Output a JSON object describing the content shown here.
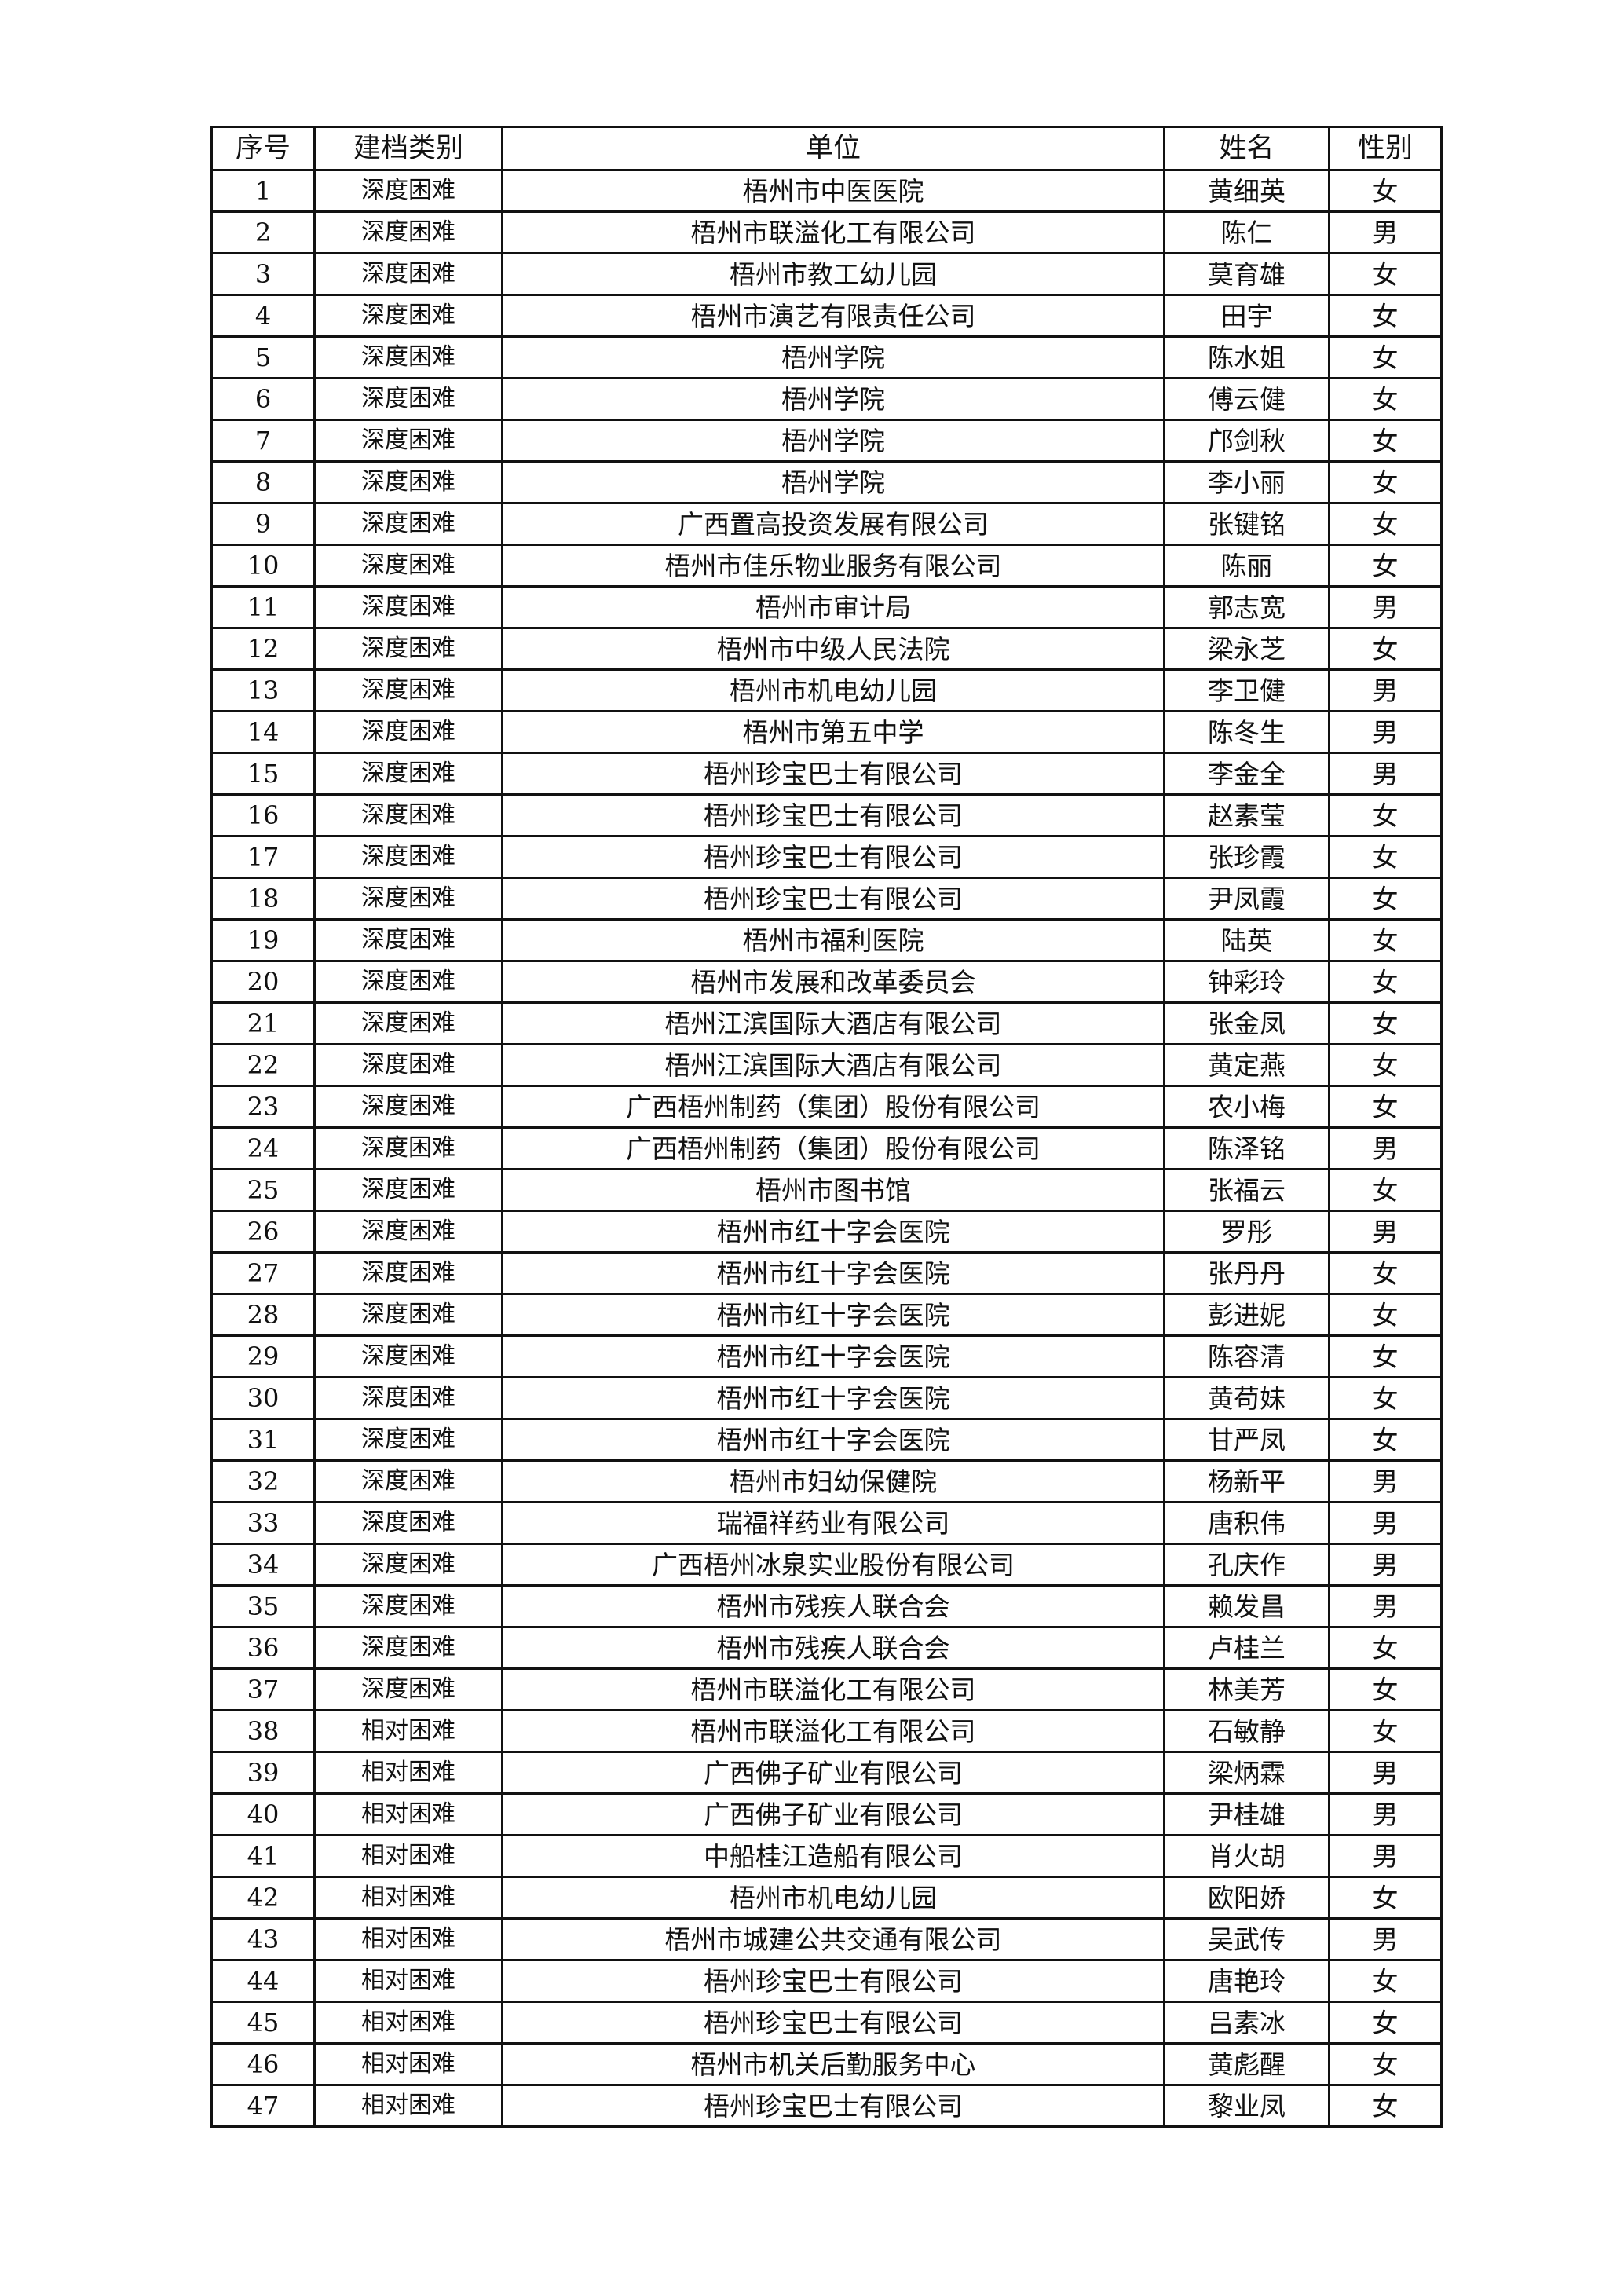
{
  "table": {
    "headers": [
      "序号",
      "建档类别",
      "单位",
      "姓名",
      "性别"
    ],
    "rows": [
      [
        "1",
        "深度困难",
        "梧州市中医医院",
        "黄细英",
        "女"
      ],
      [
        "2",
        "深度困难",
        "梧州市联溢化工有限公司",
        "陈仁",
        "男"
      ],
      [
        "3",
        "深度困难",
        "梧州市教工幼儿园",
        "莫育雄",
        "女"
      ],
      [
        "4",
        "深度困难",
        "梧州市演艺有限责任公司",
        "田宇",
        "女"
      ],
      [
        "5",
        "深度困难",
        "梧州学院",
        "陈水姐",
        "女"
      ],
      [
        "6",
        "深度困难",
        "梧州学院",
        "傅云健",
        "女"
      ],
      [
        "7",
        "深度困难",
        "梧州学院",
        "邝剑秋",
        "女"
      ],
      [
        "8",
        "深度困难",
        "梧州学院",
        "李小丽",
        "女"
      ],
      [
        "9",
        "深度困难",
        "广西置高投资发展有限公司",
        "张键铭",
        "女"
      ],
      [
        "10",
        "深度困难",
        "梧州市佳乐物业服务有限公司",
        "陈丽",
        "女"
      ],
      [
        "11",
        "深度困难",
        "梧州市审计局",
        "郭志宽",
        "男"
      ],
      [
        "12",
        "深度困难",
        "梧州市中级人民法院",
        "梁永芝",
        "女"
      ],
      [
        "13",
        "深度困难",
        "梧州市机电幼儿园",
        "李卫健",
        "男"
      ],
      [
        "14",
        "深度困难",
        "梧州市第五中学",
        "陈冬生",
        "男"
      ],
      [
        "15",
        "深度困难",
        "梧州珍宝巴士有限公司",
        "李金全",
        "男"
      ],
      [
        "16",
        "深度困难",
        "梧州珍宝巴士有限公司",
        "赵素莹",
        "女"
      ],
      [
        "17",
        "深度困难",
        "梧州珍宝巴士有限公司",
        "张珍霞",
        "女"
      ],
      [
        "18",
        "深度困难",
        "梧州珍宝巴士有限公司",
        "尹凤霞",
        "女"
      ],
      [
        "19",
        "深度困难",
        "梧州市福利医院",
        "陆英",
        "女"
      ],
      [
        "20",
        "深度困难",
        "梧州市发展和改革委员会",
        "钟彩玲",
        "女"
      ],
      [
        "21",
        "深度困难",
        "梧州江滨国际大酒店有限公司",
        "张金凤",
        "女"
      ],
      [
        "22",
        "深度困难",
        "梧州江滨国际大酒店有限公司",
        "黄定燕",
        "女"
      ],
      [
        "23",
        "深度困难",
        "广西梧州制药（集团）股份有限公司",
        "农小梅",
        "女"
      ],
      [
        "24",
        "深度困难",
        "广西梧州制药（集团）股份有限公司",
        "陈泽铭",
        "男"
      ],
      [
        "25",
        "深度困难",
        "梧州市图书馆",
        "张福云",
        "女"
      ],
      [
        "26",
        "深度困难",
        "梧州市红十字会医院",
        "罗彤",
        "男"
      ],
      [
        "27",
        "深度困难",
        "梧州市红十字会医院",
        "张丹丹",
        "女"
      ],
      [
        "28",
        "深度困难",
        "梧州市红十字会医院",
        "彭进妮",
        "女"
      ],
      [
        "29",
        "深度困难",
        "梧州市红十字会医院",
        "陈容清",
        "女"
      ],
      [
        "30",
        "深度困难",
        "梧州市红十字会医院",
        "黄苟妹",
        "女"
      ],
      [
        "31",
        "深度困难",
        "梧州市红十字会医院",
        "甘严凤",
        "女"
      ],
      [
        "32",
        "深度困难",
        "梧州市妇幼保健院",
        "杨新平",
        "男"
      ],
      [
        "33",
        "深度困难",
        "瑞福祥药业有限公司",
        "唐积伟",
        "男"
      ],
      [
        "34",
        "深度困难",
        "广西梧州冰泉实业股份有限公司",
        "孔庆作",
        "男"
      ],
      [
        "35",
        "深度困难",
        "梧州市残疾人联合会",
        "赖发昌",
        "男"
      ],
      [
        "36",
        "深度困难",
        "梧州市残疾人联合会",
        "卢桂兰",
        "女"
      ],
      [
        "37",
        "深度困难",
        "梧州市联溢化工有限公司",
        "林美芳",
        "女"
      ],
      [
        "38",
        "相对困难",
        "梧州市联溢化工有限公司",
        "石敏静",
        "女"
      ],
      [
        "39",
        "相对困难",
        "广西佛子矿业有限公司",
        "梁炳霖",
        "男"
      ],
      [
        "40",
        "相对困难",
        "广西佛子矿业有限公司",
        "尹桂雄",
        "男"
      ],
      [
        "41",
        "相对困难",
        "中船桂江造船有限公司",
        "肖火胡",
        "男"
      ],
      [
        "42",
        "相对困难",
        "梧州市机电幼儿园",
        "欧阳娇",
        "女"
      ],
      [
        "43",
        "相对困难",
        "梧州市城建公共交通有限公司",
        "吴武传",
        "男"
      ],
      [
        "44",
        "相对困难",
        "梧州珍宝巴士有限公司",
        "唐艳玲",
        "女"
      ],
      [
        "45",
        "相对困难",
        "梧州珍宝巴士有限公司",
        "吕素冰",
        "女"
      ],
      [
        "46",
        "相对困难",
        "梧州市机关后勤服务中心",
        "黄彪醒",
        "女"
      ],
      [
        "47",
        "相对困难",
        "梧州珍宝巴士有限公司",
        "黎业凤",
        "女"
      ]
    ]
  }
}
